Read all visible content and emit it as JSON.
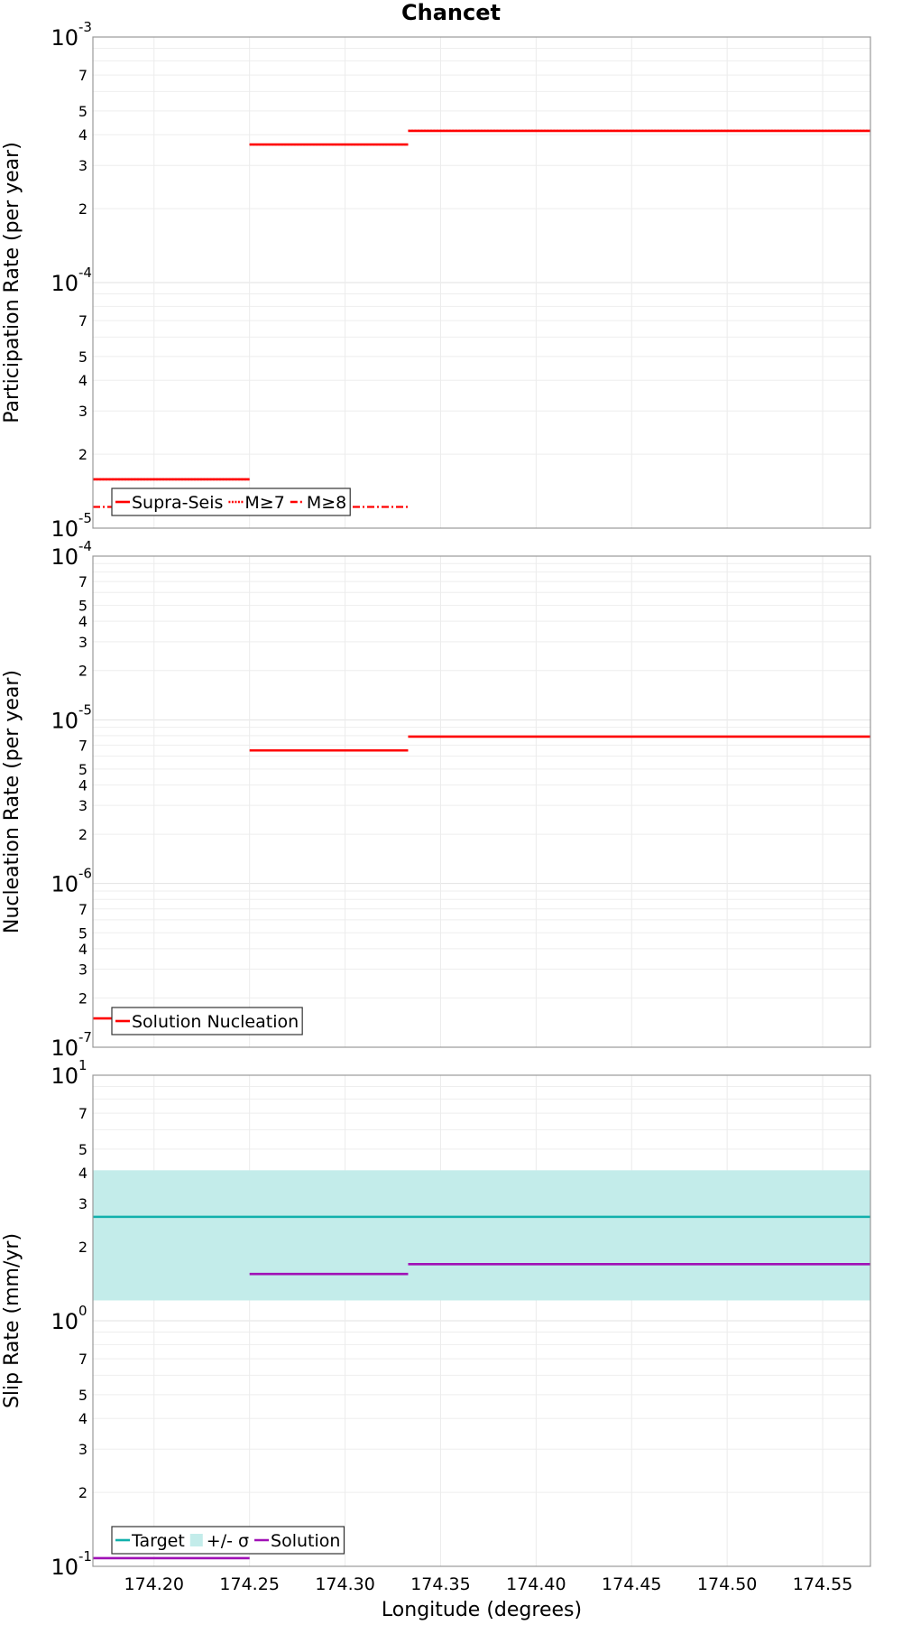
{
  "chart_data": [
    {
      "type": "line",
      "title": "Chancet",
      "xlabel": "",
      "ylabel": "Participation Rate (per year)",
      "yscale": "log",
      "ylim": [
        1e-05,
        0.001
      ],
      "xlim": [
        174.168,
        174.575
      ],
      "grid": true,
      "legend_position": "bottom-left",
      "series": [
        {
          "name": "Supra-Seis",
          "color": "#ff0000",
          "style": "solid",
          "steps": [
            [
              174.168,
              174.25,
              1.58e-05
            ],
            [
              174.25,
              174.333,
              0.000365
            ],
            [
              174.333,
              174.575,
              0.000415
            ]
          ]
        },
        {
          "name": "M≥7",
          "color": "#ff0000",
          "style": "dotted",
          "steps": [
            [
              174.168,
              174.25,
              1.58e-05
            ],
            [
              174.25,
              174.333,
              0.000365
            ],
            [
              174.333,
              174.575,
              0.000415
            ]
          ]
        },
        {
          "name": "M≥8",
          "color": "#ff0000",
          "style": "dashdot",
          "steps": [
            [
              174.168,
              174.333,
              1.22e-05
            ]
          ]
        }
      ]
    },
    {
      "type": "line",
      "xlabel": "",
      "ylabel": "Nucleation Rate (per year)",
      "yscale": "log",
      "ylim": [
        1e-07,
        0.0001
      ],
      "xlim": [
        174.168,
        174.575
      ],
      "grid": true,
      "legend_position": "bottom-left",
      "series": [
        {
          "name": "Solution Nucleation",
          "color": "#ff0000",
          "style": "solid",
          "steps": [
            [
              174.168,
              174.25,
              1.5e-07
            ],
            [
              174.25,
              174.333,
              6.5e-06
            ],
            [
              174.333,
              174.575,
              7.9e-06
            ]
          ]
        }
      ]
    },
    {
      "type": "line",
      "xlabel": "Longitude (degrees)",
      "ylabel": "Slip Rate (mm/yr)",
      "yscale": "log",
      "ylim": [
        0.1,
        10
      ],
      "xlim": [
        174.168,
        174.575
      ],
      "grid": true,
      "legend_position": "bottom-left",
      "band": {
        "name": "+/- σ",
        "color": "#c3ecea",
        "low": 1.21,
        "high": 4.1
      },
      "series": [
        {
          "name": "Target",
          "color": "#11b0ac",
          "style": "solid",
          "steps": [
            [
              174.168,
              174.575,
              2.65
            ]
          ]
        },
        {
          "name": "Solution",
          "color": "#a011b6",
          "style": "solid",
          "steps": [
            [
              174.168,
              174.25,
              0.108
            ],
            [
              174.25,
              174.333,
              1.55
            ],
            [
              174.333,
              174.575,
              1.7
            ]
          ]
        }
      ]
    }
  ],
  "x_ticks": [
    "174.20",
    "174.25",
    "174.30",
    "174.35",
    "174.40",
    "174.45",
    "174.50",
    "174.55"
  ]
}
